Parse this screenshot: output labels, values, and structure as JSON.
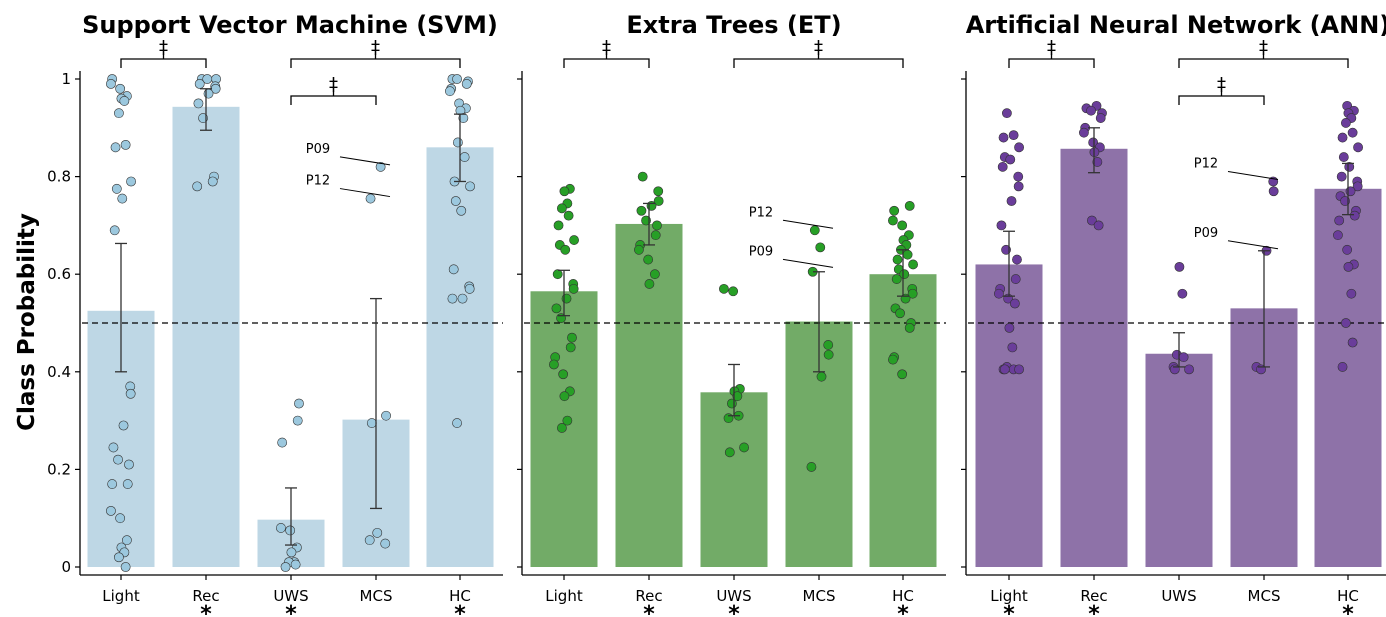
{
  "chart_data": {
    "type": "bar",
    "ylabel": "Class Probability",
    "ylim": [
      0,
      1
    ],
    "yticks": [
      "0",
      "0.2",
      "0.4",
      "0.6",
      "0.8",
      "1"
    ],
    "threshold": 0.5,
    "grid": false,
    "categories": [
      "Light",
      "Rec",
      "UWS",
      "MCS",
      "HC"
    ],
    "panels": [
      {
        "title": "Support Vector Machine (SVM)",
        "bar_color": "#bed7e5",
        "point_color": "#9cc8de",
        "means": [
          0.525,
          0.943,
          0.097,
          0.302,
          0.86
        ],
        "err_low": [
          0.4,
          0.895,
          0.045,
          0.12,
          0.79
        ],
        "err_high": [
          0.663,
          0.98,
          0.162,
          0.55,
          0.928
        ],
        "stars": [
          "",
          "*",
          "*",
          "",
          "*"
        ],
        "points": [
          [
            1.0,
            0.99,
            0.98,
            0.965,
            0.96,
            0.955,
            0.93,
            0.865,
            0.86,
            0.79,
            0.775,
            0.755,
            0.69,
            0.37,
            0.355,
            0.29,
            0.245,
            0.22,
            0.21,
            0.17,
            0.17,
            0.115,
            0.1,
            0.055,
            0.04,
            0.03,
            0.02,
            0.0
          ],
          [
            1.0,
            1.0,
            1.0,
            0.99,
            0.985,
            0.98,
            0.97,
            0.95,
            0.92,
            0.8,
            0.79,
            0.78
          ],
          [
            0.335,
            0.3,
            0.255,
            0.08,
            0.075,
            0.04,
            0.03,
            0.01,
            0.01,
            0.005,
            0.0
          ],
          [
            0.82,
            0.755,
            0.31,
            0.295,
            0.07,
            0.055,
            0.048
          ],
          [
            1.0,
            1.0,
            0.995,
            0.99,
            0.98,
            0.975,
            0.95,
            0.94,
            0.935,
            0.92,
            0.87,
            0.84,
            0.79,
            0.78,
            0.75,
            0.73,
            0.61,
            0.575,
            0.57,
            0.55,
            0.55,
            0.295
          ]
        ],
        "annotations": [
          {
            "text": "P09",
            "category": 3,
            "y": 0.82
          },
          {
            "text": "P12",
            "category": 3,
            "y": 0.755
          }
        ],
        "brackets": [
          {
            "from": 0,
            "to": 1,
            "label": "‡",
            "level": 0
          },
          {
            "from": 2,
            "to": 4,
            "label": "‡",
            "level": 0
          },
          {
            "from": 2,
            "to": 3,
            "label": "‡",
            "level": 1
          }
        ]
      },
      {
        "title": "Extra Trees (ET)",
        "bar_color": "#72ab67",
        "point_color": "#279f26",
        "means": [
          0.565,
          0.703,
          0.358,
          0.503,
          0.6
        ],
        "err_low": [
          0.515,
          0.66,
          0.31,
          0.4,
          0.555
        ],
        "err_high": [
          0.608,
          0.745,
          0.415,
          0.605,
          0.65
        ],
        "stars": [
          "",
          "*",
          "*",
          "",
          "*"
        ],
        "points": [
          [
            0.775,
            0.77,
            0.745,
            0.735,
            0.72,
            0.7,
            0.67,
            0.66,
            0.65,
            0.6,
            0.58,
            0.57,
            0.55,
            0.53,
            0.51,
            0.47,
            0.45,
            0.43,
            0.415,
            0.395,
            0.36,
            0.35,
            0.3,
            0.285
          ],
          [
            0.8,
            0.77,
            0.75,
            0.74,
            0.73,
            0.71,
            0.7,
            0.68,
            0.66,
            0.65,
            0.63,
            0.6,
            0.58
          ],
          [
            0.57,
            0.565,
            0.365,
            0.36,
            0.35,
            0.335,
            0.31,
            0.305,
            0.245,
            0.235
          ],
          [
            0.69,
            0.655,
            0.605,
            0.455,
            0.435,
            0.39,
            0.205
          ],
          [
            0.74,
            0.73,
            0.71,
            0.7,
            0.68,
            0.67,
            0.66,
            0.65,
            0.64,
            0.63,
            0.62,
            0.61,
            0.6,
            0.59,
            0.57,
            0.56,
            0.55,
            0.53,
            0.52,
            0.5,
            0.49,
            0.43,
            0.425,
            0.395
          ]
        ],
        "annotations": [
          {
            "text": "P12",
            "category": 3,
            "y": 0.69
          },
          {
            "text": "P09",
            "category": 3,
            "y": 0.61
          }
        ],
        "brackets": [
          {
            "from": 0,
            "to": 1,
            "label": "‡",
            "level": 0
          },
          {
            "from": 2,
            "to": 4,
            "label": "‡",
            "level": 0
          }
        ]
      },
      {
        "title": "Artificial Neural Network (ANN)",
        "bar_color": "#8e72a8",
        "point_color": "#6a3d9a",
        "means": [
          0.62,
          0.857,
          0.437,
          0.53,
          0.775
        ],
        "err_low": [
          0.555,
          0.808,
          0.41,
          0.41,
          0.722
        ],
        "err_high": [
          0.688,
          0.9,
          0.48,
          0.648,
          0.827
        ],
        "stars": [
          "*",
          "*",
          "",
          "",
          "*"
        ],
        "points": [
          [
            0.93,
            0.885,
            0.88,
            0.86,
            0.84,
            0.835,
            0.82,
            0.8,
            0.78,
            0.75,
            0.7,
            0.65,
            0.63,
            0.59,
            0.57,
            0.56,
            0.55,
            0.54,
            0.49,
            0.45,
            0.41,
            0.405,
            0.405,
            0.405,
            0.405
          ],
          [
            0.945,
            0.94,
            0.935,
            0.93,
            0.92,
            0.9,
            0.89,
            0.87,
            0.86,
            0.85,
            0.83,
            0.71,
            0.7
          ],
          [
            0.615,
            0.56,
            0.435,
            0.43,
            0.41,
            0.405,
            0.405
          ],
          [
            0.79,
            0.77,
            0.648,
            0.41,
            0.405
          ],
          [
            0.945,
            0.935,
            0.93,
            0.92,
            0.91,
            0.89,
            0.88,
            0.86,
            0.84,
            0.82,
            0.8,
            0.79,
            0.78,
            0.77,
            0.76,
            0.75,
            0.73,
            0.72,
            0.71,
            0.68,
            0.65,
            0.62,
            0.615,
            0.56,
            0.5,
            0.46,
            0.41
          ]
        ],
        "annotations": [
          {
            "text": "P12",
            "category": 3,
            "y": 0.79
          },
          {
            "text": "P09",
            "category": 3,
            "y": 0.648
          }
        ],
        "brackets": [
          {
            "from": 0,
            "to": 1,
            "label": "‡",
            "level": 0
          },
          {
            "from": 2,
            "to": 4,
            "label": "‡",
            "level": 0
          },
          {
            "from": 2,
            "to": 3,
            "label": "‡",
            "level": 1
          }
        ]
      }
    ]
  }
}
